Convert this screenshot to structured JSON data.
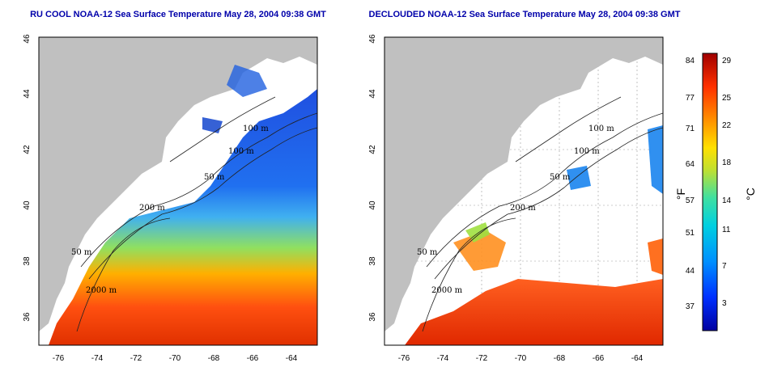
{
  "maps": [
    {
      "id": "left",
      "title": "RU COOL NOAA-12 Sea Surface Temperature May 28, 2004 09:38 GMT",
      "lon_ticks": [
        "-76",
        "-74",
        "-72",
        "-70",
        "-68",
        "-66",
        "-64"
      ],
      "lat_ticks": [
        "36",
        "38",
        "40",
        "42",
        "44",
        "46"
      ],
      "contour_labels": [
        "100 m",
        "100 m",
        "50 m",
        "200 m",
        "50 m",
        "2000 m"
      ]
    },
    {
      "id": "right",
      "title": "DECLOUDED NOAA-12 Sea Surface Temperature May 28, 2004 09:38 GMT",
      "lon_ticks": [
        "-76",
        "-74",
        "-72",
        "-70",
        "-68",
        "-66",
        "-64"
      ],
      "lat_ticks": [
        "36",
        "38",
        "40",
        "42",
        "44",
        "46"
      ],
      "contour_labels": [
        "100 m",
        "100 m",
        "50 m",
        "200 m",
        "50 m",
        "2000 m"
      ]
    }
  ],
  "colorbar": {
    "fahrenheit_label": "°F",
    "celsius_label": "°C",
    "fahrenheit_ticks": [
      "84",
      "77",
      "71",
      "64",
      "57",
      "51",
      "44",
      "37"
    ],
    "celsius_ticks": [
      "29",
      "25",
      "22",
      "18",
      "14",
      "11",
      "7",
      "3"
    ]
  },
  "colors": {
    "land": "#c0c0c0",
    "title": "#0000aa",
    "cold": "#1010c0",
    "warm": "#e03010"
  }
}
